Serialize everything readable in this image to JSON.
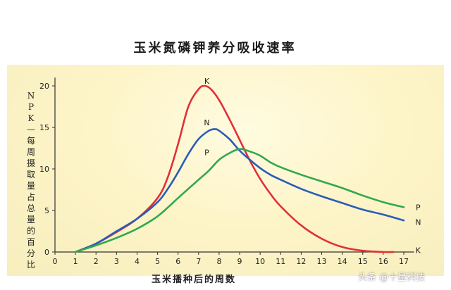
{
  "chart_data": {
    "type": "line",
    "title": "玉米氮磷钾养分吸收速率",
    "xlabel": "玉米播种后的周数",
    "ylabel": "NPK—每周摄取量占总量的百分比",
    "xlim": [
      0,
      17.5
    ],
    "ylim": [
      0,
      21
    ],
    "x_ticks": [
      0,
      1,
      2,
      3,
      4,
      5,
      6,
      7,
      8,
      9,
      10,
      11,
      12,
      13,
      14,
      15,
      16,
      17
    ],
    "y_ticks": [
      0,
      5,
      10,
      15,
      20
    ],
    "grid": false,
    "legend": "labels at line ends",
    "series": [
      {
        "name": "K",
        "color": "#e0303a",
        "x": [
          1,
          2,
          3,
          4,
          5,
          5.5,
          6,
          6.5,
          7,
          7.3,
          7.6,
          8,
          8.5,
          9,
          9.5,
          10,
          10.5,
          11,
          12,
          13,
          14,
          15,
          16,
          16.5
        ],
        "y": [
          0,
          1,
          2.4,
          4,
          6.5,
          9,
          13,
          17.5,
          19.6,
          20,
          19.6,
          18.3,
          16,
          13.5,
          11,
          8.8,
          7,
          5.5,
          3.2,
          1.6,
          0.6,
          0.15,
          0,
          0
        ]
      },
      {
        "name": "N",
        "color": "#2a5cb8",
        "x": [
          1,
          2,
          3,
          4,
          5,
          5.5,
          6,
          6.5,
          7,
          7.5,
          7.8,
          8,
          8.5,
          9,
          9.5,
          10,
          10.5,
          11,
          12,
          13,
          14,
          15,
          16,
          17
        ],
        "y": [
          0,
          1,
          2.5,
          4,
          6,
          7.6,
          9.6,
          11.8,
          13.6,
          14.6,
          14.8,
          14.6,
          13.6,
          12.2,
          11.1,
          10.1,
          9.3,
          8.7,
          7.6,
          6.7,
          5.9,
          5.1,
          4.5,
          3.8
        ]
      },
      {
        "name": "P",
        "color": "#2fa84f",
        "x": [
          1,
          2,
          3,
          4,
          5,
          6,
          7,
          7.5,
          8,
          8.5,
          9,
          9.5,
          10,
          10.5,
          11,
          12,
          13,
          14,
          15,
          16,
          17
        ],
        "y": [
          0,
          0.8,
          1.7,
          2.8,
          4.3,
          6.5,
          8.7,
          9.8,
          11.1,
          11.9,
          12.4,
          12.1,
          11.6,
          10.8,
          10.2,
          9.3,
          8.5,
          7.7,
          6.8,
          6.0,
          5.4
        ]
      }
    ],
    "inline_labels": [
      {
        "text": "K",
        "x": 7.4,
        "y": 20.6
      },
      {
        "text": "N",
        "x": 7.4,
        "y": 15.6
      },
      {
        "text": "P",
        "x": 7.4,
        "y": 12
      },
      {
        "text": "P",
        "x": 17.7,
        "y": 5.4
      },
      {
        "text": "N",
        "x": 17.7,
        "y": 3.6
      },
      {
        "text": "K",
        "x": 17.7,
        "y": 0.2
      }
    ]
  },
  "watermark": "头条 @十星科技"
}
